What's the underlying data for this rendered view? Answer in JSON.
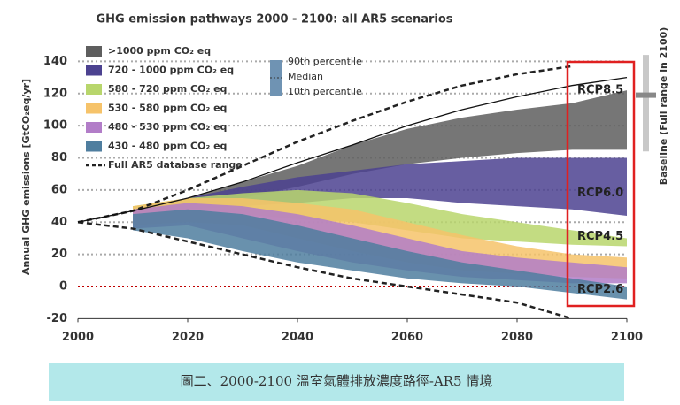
{
  "chart_data": {
    "type": "band",
    "title": "GHG emission pathways 2000 - 2100: all AR5 scenarios",
    "y_label": "Annual GHG emissions [GtCO₂eq/yr]",
    "xlim": [
      2000,
      2100
    ],
    "xticks": [
      2000,
      2020,
      2040,
      2060,
      2080,
      2100
    ],
    "ylim": [
      -20,
      140
    ],
    "yticks": [
      -20,
      0,
      20,
      40,
      60,
      80,
      100,
      120,
      140
    ],
    "grid": true,
    "grid_color": "#aaaaaa",
    "zero_line_color": "#c00000",
    "x": [
      2010,
      2020,
      2030,
      2040,
      2050,
      2060,
      2070,
      2080,
      2090,
      2100
    ],
    "series": [
      {
        "name": ">1000 ppm CO₂ eq",
        "color": "#5e5e5e",
        "lower": [
          42,
          50,
          55,
          62,
          70,
          76,
          80,
          83,
          85,
          85
        ],
        "upper": [
          48,
          55,
          65,
          75,
          88,
          98,
          105,
          110,
          114,
          122
        ]
      },
      {
        "name": "720 - 1000 ppm CO₂ eq",
        "color": "#4c4290",
        "lower": [
          40,
          48,
          50,
          52,
          55,
          55,
          52,
          50,
          48,
          44
        ],
        "upper": [
          48,
          55,
          62,
          68,
          72,
          76,
          78,
          80,
          80,
          80
        ]
      },
      {
        "name": "580 - 720 ppm CO₂ eq",
        "color": "#b8d66c",
        "lower": [
          40,
          45,
          45,
          42,
          40,
          35,
          30,
          28,
          26,
          25
        ],
        "upper": [
          50,
          55,
          58,
          60,
          58,
          52,
          45,
          40,
          35,
          30
        ]
      },
      {
        "name": "530 - 580 ppm CO₂ eq",
        "color": "#f6c36a",
        "lower": [
          38,
          40,
          38,
          30,
          22,
          15,
          10,
          8,
          6,
          5
        ],
        "upper": [
          50,
          55,
          55,
          52,
          48,
          40,
          32,
          25,
          20,
          18
        ]
      },
      {
        "name": "480 - 530 ppm CO₂ eq",
        "color": "#b27dc8",
        "lower": [
          36,
          38,
          30,
          22,
          15,
          10,
          6,
          4,
          2,
          2
        ],
        "upper": [
          48,
          52,
          50,
          45,
          38,
          30,
          22,
          18,
          15,
          12
        ]
      },
      {
        "name": "430 - 480 ppm CO₂ eq",
        "color": "#4f7e9f",
        "lower": [
          35,
          30,
          22,
          15,
          10,
          5,
          2,
          0,
          -4,
          -8
        ],
        "upper": [
          45,
          48,
          45,
          38,
          30,
          22,
          15,
          10,
          5,
          0
        ]
      }
    ],
    "range": {
      "name": "Full AR5 database range",
      "x": [
        2000,
        2010,
        2020,
        2030,
        2040,
        2050,
        2060,
        2070,
        2080,
        2090
      ],
      "upper": [
        40,
        47,
        60,
        75,
        90,
        103,
        115,
        125,
        132,
        137
      ],
      "lower": [
        40,
        36,
        28,
        20,
        12,
        5,
        0,
        -5,
        -10,
        -20
      ]
    },
    "median_line": {
      "x": [
        2000,
        2010,
        2020,
        2030,
        2040,
        2050,
        2060,
        2070,
        2080,
        2090,
        2100
      ],
      "values": [
        40,
        47,
        55,
        65,
        77,
        88,
        100,
        110,
        118,
        125,
        130
      ]
    },
    "percentile_legend": [
      "90th percentile",
      "Median",
      "10th percentile"
    ],
    "annotations": [
      {
        "text": "RCP8.5",
        "y": 122
      },
      {
        "text": "RCP6.0",
        "y": 58
      },
      {
        "text": "RCP4.5",
        "y": 31
      },
      {
        "text": "RCP2.6",
        "y": -2
      }
    ],
    "highlight": {
      "x": [
        2090,
        2100
      ],
      "color": "#e02020"
    },
    "baseline": {
      "label": "Baseline (Full range in 2100)",
      "range": [
        84,
        144
      ],
      "median": 119,
      "color": "#c8c8c8"
    }
  },
  "caption": "圖二、2000-2100 溫室氣體排放濃度路徑-AR5 情境"
}
